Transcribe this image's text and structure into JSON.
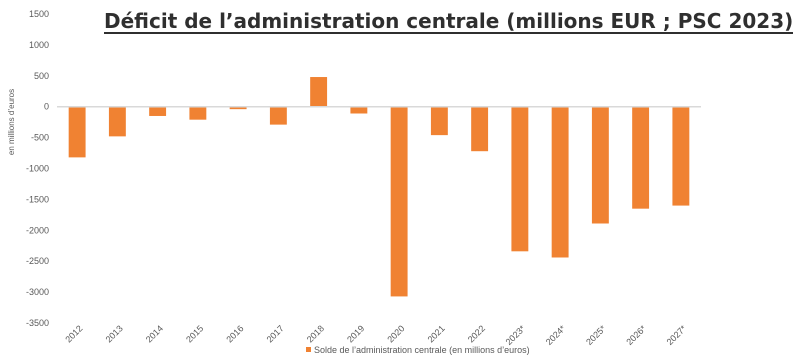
{
  "chart_data": {
    "type": "bar",
    "title": "Déficit de l’administration centrale (millions EUR ; PSC 2023)",
    "ylabel": "en millions d’euros",
    "xlabel": "",
    "categories": [
      "2012",
      "2013",
      "2014",
      "2015",
      "2016",
      "2017",
      "2018",
      "2019",
      "2020",
      "2021",
      "2022",
      "2023*",
      "2024*",
      "2025*",
      "2026*",
      "2027*"
    ],
    "series": [
      {
        "name": "Solde de l’administration centrale (en millions d’euros)",
        "values": [
          -820,
          -480,
          -150,
          -210,
          -40,
          -290,
          480,
          -110,
          -3070,
          -460,
          -720,
          -2340,
          -2440,
          -1890,
          -1650,
          -1600
        ],
        "color": "#f08232"
      }
    ],
    "ylim": [
      -3500,
      1500
    ],
    "yticks": [
      1500,
      1000,
      500,
      0,
      -500,
      -1000,
      -1500,
      -2000,
      -2500,
      -3000,
      -3500
    ],
    "grid": false,
    "legend_position": "bottom"
  }
}
